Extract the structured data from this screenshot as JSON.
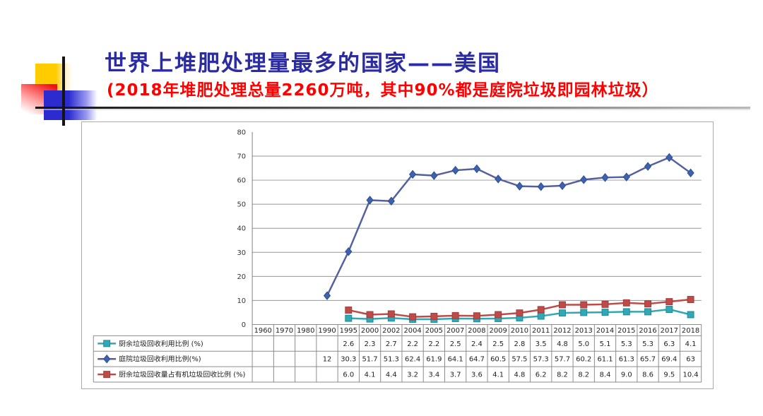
{
  "slide": {
    "title": "世界上堆肥处理量最多的国家——美国",
    "subtitle": "(2018年堆肥处理总量2260万吨，其中90%都是庭院垃圾即园林垃圾）",
    "title_color": "#2b2ba3",
    "subtitle_color": "#ff0000"
  },
  "chart_data": {
    "type": "line",
    "title": "",
    "xlabel": "",
    "ylabel": "",
    "ylim": [
      0,
      80
    ],
    "yticks": [
      0,
      10,
      20,
      30,
      40,
      50,
      60,
      70,
      80
    ],
    "grid": true,
    "legend_position": "data-table-left",
    "data_table": true,
    "categories": [
      "1960",
      "1970",
      "1980",
      "1990",
      "1995",
      "2000",
      "2002",
      "2004",
      "2005",
      "2007",
      "2008",
      "2009",
      "2010",
      "2011",
      "2012",
      "2013",
      "2014",
      "2015",
      "2016",
      "2017",
      "2018"
    ],
    "series": [
      {
        "name": "厨余垃圾回收利用比例 (%)",
        "marker": "square",
        "color": "#31a8b5",
        "marker_stroke": "#1f8a97",
        "values": [
          "",
          "",
          "",
          "",
          "2.6",
          "2.3",
          "2.7",
          "2.2",
          "2.2",
          "2.5",
          "2.4",
          "2.5",
          "2.8",
          "3.5",
          "4.8",
          "5.0",
          "5.1",
          "5.3",
          "5.3",
          "6.3",
          "4.1"
        ]
      },
      {
        "name": "庭院垃圾回收利用比例(%)",
        "marker": "diamond",
        "color": "#55619e",
        "marker_fill": "#3d63b0",
        "marker_stroke": "#2f4d8f",
        "values": [
          "",
          "",
          "",
          "12",
          "30.3",
          "51.7",
          "51.3",
          "62.4",
          "61.9",
          "64.1",
          "64.7",
          "60.5",
          "57.5",
          "57.3",
          "57.7",
          "60.2",
          "61.1",
          "61.3",
          "65.7",
          "69.4",
          "63"
        ]
      },
      {
        "name": "厨余垃圾回收量占有机垃圾回收比例 (%)",
        "marker": "square",
        "color": "#be4b48",
        "marker_stroke": "#9e3d3b",
        "values": [
          "",
          "",
          "",
          "",
          "6.0",
          "4.1",
          "4.4",
          "3.2",
          "3.4",
          "3.7",
          "3.6",
          "4.1",
          "4.8",
          "6.2",
          "8.2",
          "8.2",
          "8.4",
          "9.0",
          "8.6",
          "9.5",
          "10.4"
        ]
      }
    ],
    "axis_colors": {
      "gridline": "#969696",
      "axis": "#808080",
      "table_border": "#8c8c8c",
      "tick_label": "#333333",
      "cell_text": "#1f1f1f"
    }
  }
}
